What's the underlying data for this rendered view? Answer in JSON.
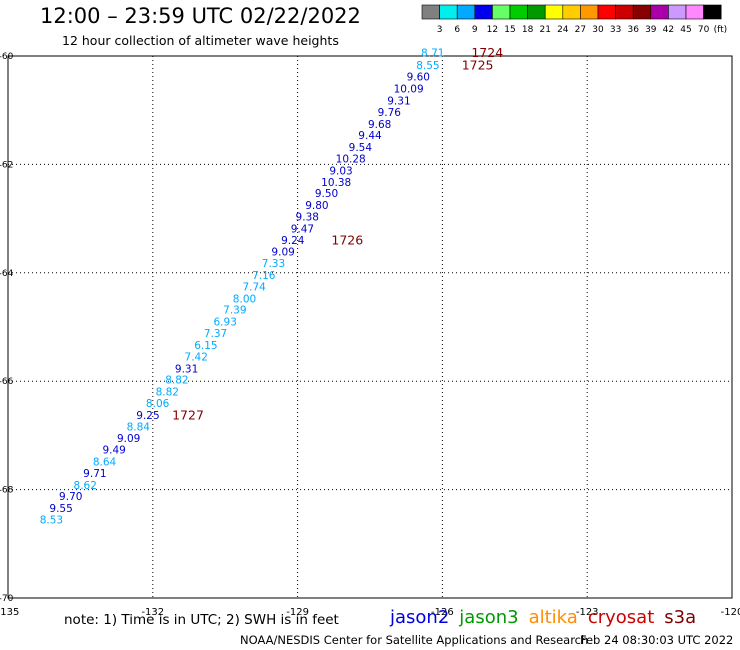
{
  "title": "12:00 – 23:59 UTC 02/22/2022",
  "subtitle": "12 hour collection of altimeter wave heights",
  "footer": {
    "note": "note: 1) Time is in UTC; 2) SWH is in feet",
    "credit": "NOAA/NESDIS Center for Satellite Applications and Research",
    "timestamp": "Feb 24 08:30:03 UTC 2022"
  },
  "satellites": [
    {
      "name": "jason2",
      "color": "#0000dd"
    },
    {
      "name": "jason3",
      "color": "#009900"
    },
    {
      "name": "altika",
      "color": "#ff8c00"
    },
    {
      "name": "cryosat",
      "color": "#cc0000"
    },
    {
      "name": "s3a",
      "color": "#800000"
    }
  ],
  "colorbar": {
    "ticks": [
      "3",
      "6",
      "9",
      "12",
      "15",
      "18",
      "21",
      "24",
      "27",
      "30",
      "33",
      "36",
      "39",
      "42",
      "45",
      "70"
    ],
    "unit": "(ft)",
    "colors": [
      "#808080",
      "#00eeee",
      "#00aaff",
      "#0000ee",
      "#66ff66",
      "#00cc00",
      "#009900",
      "#ffff00",
      "#ffcc00",
      "#ff9900",
      "#ff0000",
      "#cc0000",
      "#880000",
      "#aa00aa",
      "#cc99ff",
      "#ff88ff",
      "#000000"
    ]
  },
  "chart_data": {
    "type": "scatter",
    "title": "12:00 – 23:59 UTC 02/22/2022",
    "subtitle": "12 hour collection of altimeter wave heights",
    "xlabel": "",
    "ylabel": "",
    "xlim": [
      -135,
      -120
    ],
    "ylim": [
      -70,
      -60
    ],
    "x_ticks": [
      "-135",
      "-132",
      "-129",
      "-126",
      "-123",
      "-120"
    ],
    "y_ticks": [
      "-60",
      "-62",
      "-64",
      "-66",
      "-68",
      "-70"
    ],
    "grid": "dotted",
    "value_colors": {
      "lt9": "#00aaff",
      "ge9": "#0000cc",
      "time": "#800000"
    },
    "points": [
      {
        "lon": -126.2,
        "lat": -59.95,
        "swh": "8.71"
      },
      {
        "lon": -126.3,
        "lat": -60.18,
        "swh": "8.55"
      },
      {
        "lon": -126.5,
        "lat": -60.4,
        "swh": "9.60"
      },
      {
        "lon": -126.7,
        "lat": -60.62,
        "swh": "10.09"
      },
      {
        "lon": -126.9,
        "lat": -60.84,
        "swh": "9.31"
      },
      {
        "lon": -127.1,
        "lat": -61.05,
        "swh": "9.76"
      },
      {
        "lon": -127.3,
        "lat": -61.27,
        "swh": "9.68"
      },
      {
        "lon": -127.5,
        "lat": -61.48,
        "swh": "9.44"
      },
      {
        "lon": -127.7,
        "lat": -61.7,
        "swh": "9.54"
      },
      {
        "lon": -127.9,
        "lat": -61.91,
        "swh": "10.28"
      },
      {
        "lon": -128.1,
        "lat": -62.13,
        "swh": "9.03"
      },
      {
        "lon": -128.2,
        "lat": -62.34,
        "swh": "10.38"
      },
      {
        "lon": -128.4,
        "lat": -62.55,
        "swh": "9.50"
      },
      {
        "lon": -128.6,
        "lat": -62.77,
        "swh": "9.80"
      },
      {
        "lon": -128.8,
        "lat": -62.98,
        "swh": "9.38"
      },
      {
        "lon": -128.9,
        "lat": -63.2,
        "swh": "9.47"
      },
      {
        "lon": -129.1,
        "lat": -63.41,
        "swh": "9.24"
      },
      {
        "lon": -129.3,
        "lat": -63.63,
        "swh": "9.09"
      },
      {
        "lon": -129.5,
        "lat": -63.84,
        "swh": "7.33"
      },
      {
        "lon": -129.7,
        "lat": -64.06,
        "swh": "7.16"
      },
      {
        "lon": -129.9,
        "lat": -64.27,
        "swh": "7.74"
      },
      {
        "lon": -130.1,
        "lat": -64.49,
        "swh": "8.00"
      },
      {
        "lon": -130.3,
        "lat": -64.7,
        "swh": "7.39"
      },
      {
        "lon": -130.5,
        "lat": -64.92,
        "swh": "6.93"
      },
      {
        "lon": -130.7,
        "lat": -65.13,
        "swh": "7.37"
      },
      {
        "lon": -130.9,
        "lat": -65.35,
        "swh": "6.15"
      },
      {
        "lon": -131.1,
        "lat": -65.56,
        "swh": "7.42"
      },
      {
        "lon": -131.3,
        "lat": -65.78,
        "swh": "9.31"
      },
      {
        "lon": -131.5,
        "lat": -65.99,
        "swh": "8.82"
      },
      {
        "lon": -131.7,
        "lat": -66.21,
        "swh": "8.82"
      },
      {
        "lon": -131.9,
        "lat": -66.42,
        "swh": "8.06"
      },
      {
        "lon": -132.1,
        "lat": -66.64,
        "swh": "9.25"
      },
      {
        "lon": -132.3,
        "lat": -66.85,
        "swh": "8.84"
      },
      {
        "lon": -132.5,
        "lat": -67.07,
        "swh": "9.09"
      },
      {
        "lon": -132.8,
        "lat": -67.28,
        "swh": "9.49"
      },
      {
        "lon": -133.0,
        "lat": -67.5,
        "swh": "8.64"
      },
      {
        "lon": -133.2,
        "lat": -67.71,
        "swh": "9.71"
      },
      {
        "lon": -133.4,
        "lat": -67.93,
        "swh": "8.62"
      },
      {
        "lon": -133.7,
        "lat": -68.14,
        "swh": "9.70"
      },
      {
        "lon": -133.9,
        "lat": -68.36,
        "swh": "9.55"
      },
      {
        "lon": -134.1,
        "lat": -68.57,
        "swh": "8.53"
      }
    ],
    "time_labels": [
      {
        "lon": -125.4,
        "lat": -59.95,
        "text": "1724"
      },
      {
        "lon": -125.6,
        "lat": -60.18,
        "text": "1725"
      },
      {
        "lon": -128.3,
        "lat": -63.41,
        "text": "1726"
      },
      {
        "lon": -131.6,
        "lat": -66.64,
        "text": "1727"
      }
    ]
  }
}
